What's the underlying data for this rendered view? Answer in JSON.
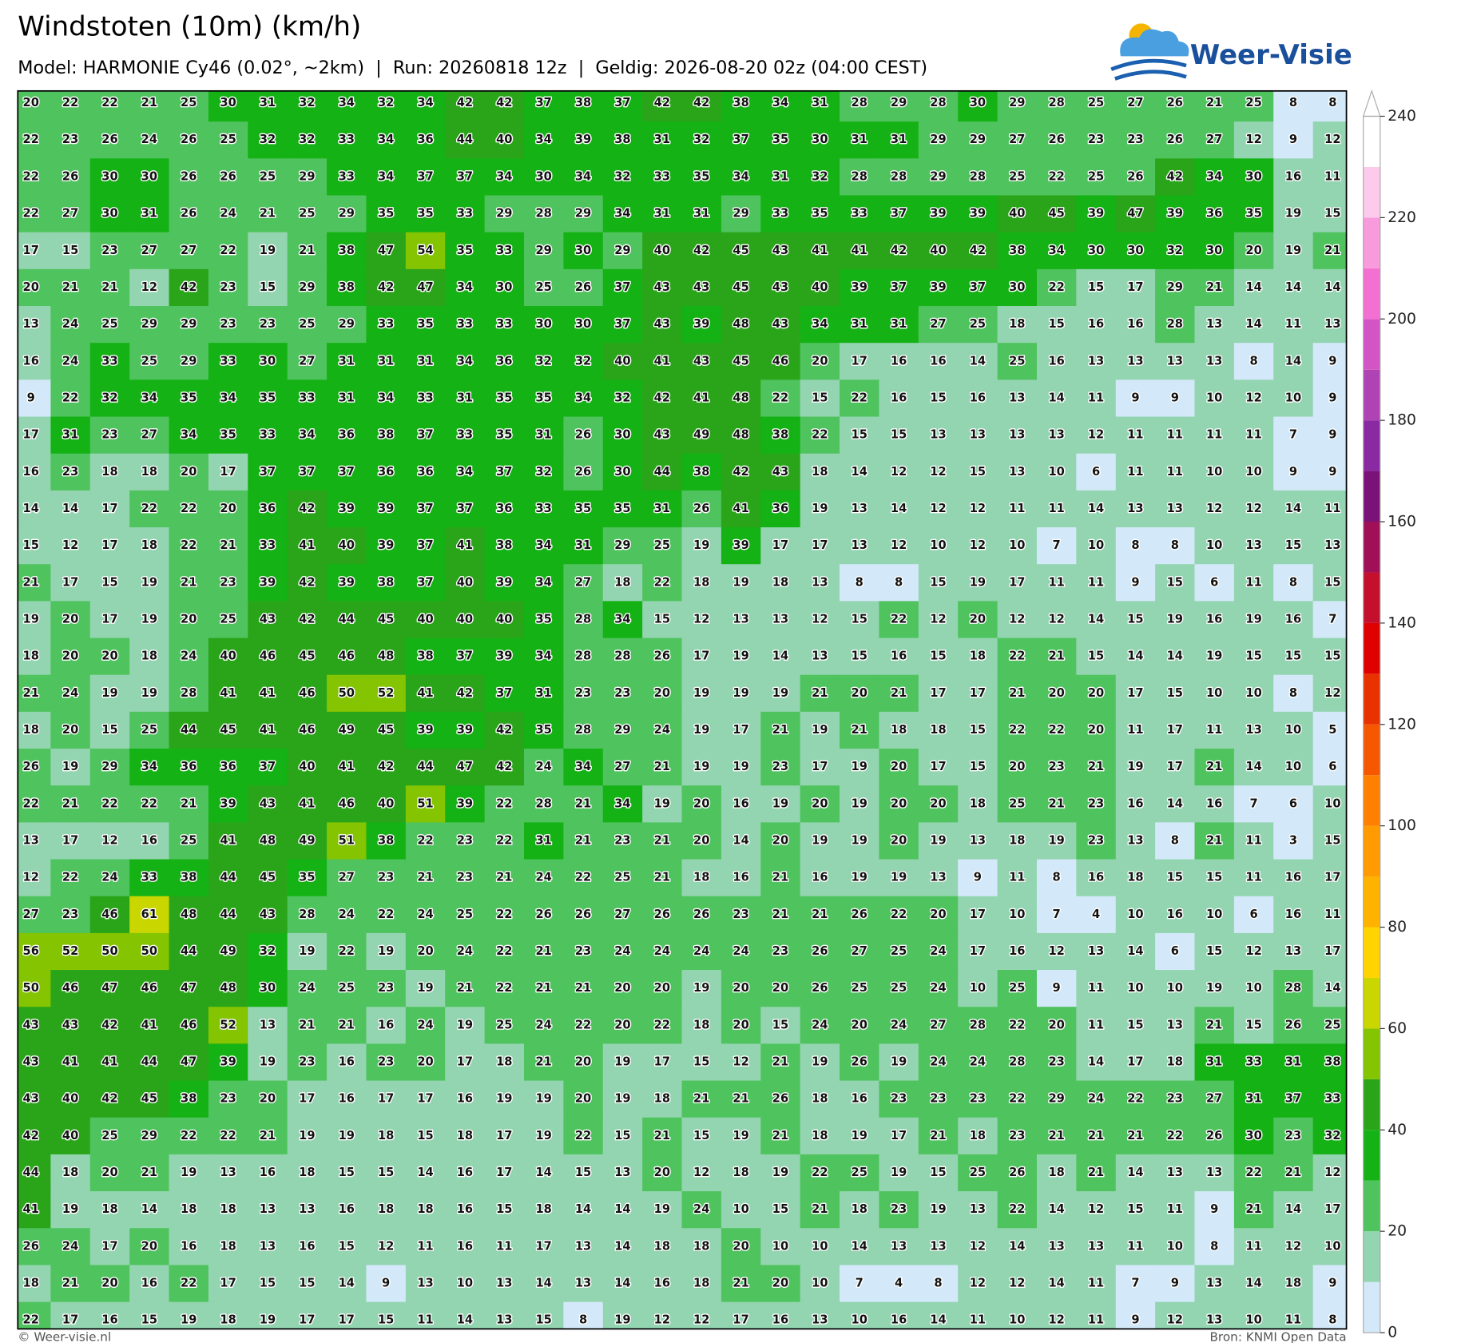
{
  "header": {
    "title": "Windstoten (10m) (km/h)",
    "subtitle": "Model: HARMONIE Cy46 (0.02°, ~2km)  |  Run: 20260818 12z  |  Geldig: 2026-08-20 02z (04:00 CEST)",
    "logo": "Weer-Visie"
  },
  "map": {
    "type": "grid",
    "values": [
      [
        20,
        22,
        22,
        21,
        25,
        30,
        31,
        32,
        34,
        32,
        34,
        42,
        42,
        37,
        38,
        37,
        42,
        42,
        38,
        34,
        31,
        28,
        29,
        28,
        30,
        29,
        28,
        25,
        27,
        26,
        21,
        25,
        8,
        8
      ],
      [
        22,
        23,
        26,
        24,
        26,
        25,
        32,
        32,
        33,
        34,
        36,
        44,
        40,
        34,
        39,
        38,
        31,
        32,
        37,
        35,
        30,
        31,
        31,
        29,
        29,
        27,
        26,
        23,
        23,
        26,
        27,
        12,
        9,
        12
      ],
      [
        22,
        26,
        30,
        30,
        26,
        26,
        25,
        29,
        33,
        34,
        37,
        37,
        34,
        30,
        34,
        32,
        33,
        35,
        34,
        31,
        32,
        28,
        28,
        29,
        28,
        25,
        22,
        25,
        26,
        42,
        34,
        30,
        16,
        11
      ],
      [
        22,
        27,
        30,
        31,
        26,
        24,
        21,
        25,
        29,
        35,
        35,
        33,
        29,
        28,
        29,
        34,
        31,
        31,
        29,
        33,
        35,
        33,
        37,
        39,
        39,
        40,
        45,
        39,
        47,
        39,
        36,
        35,
        19,
        15
      ],
      [
        17,
        15,
        23,
        27,
        27,
        22,
        19,
        21,
        38,
        47,
        54,
        35,
        33,
        29,
        30,
        29,
        40,
        42,
        45,
        43,
        41,
        41,
        42,
        40,
        42,
        38,
        34,
        30,
        30,
        32,
        30,
        20,
        19,
        21
      ],
      [
        20,
        21,
        21,
        12,
        42,
        23,
        15,
        29,
        38,
        42,
        47,
        34,
        30,
        25,
        26,
        37,
        43,
        43,
        45,
        43,
        40,
        39,
        37,
        39,
        37,
        30,
        22,
        15,
        17,
        29,
        21,
        14,
        14,
        14
      ],
      [
        13,
        24,
        25,
        29,
        29,
        23,
        23,
        25,
        29,
        33,
        35,
        33,
        33,
        30,
        30,
        37,
        43,
        39,
        48,
        43,
        34,
        31,
        31,
        27,
        25,
        18,
        15,
        16,
        16,
        28,
        13,
        14,
        11,
        13
      ],
      [
        16,
        24,
        33,
        25,
        29,
        33,
        30,
        27,
        31,
        31,
        31,
        34,
        36,
        32,
        32,
        40,
        41,
        43,
        45,
        46,
        20,
        17,
        16,
        16,
        14,
        25,
        16,
        13,
        13,
        13,
        13,
        8,
        14,
        9
      ],
      [
        9,
        22,
        32,
        34,
        35,
        34,
        35,
        33,
        31,
        34,
        33,
        31,
        35,
        35,
        34,
        32,
        42,
        41,
        48,
        22,
        15,
        22,
        16,
        15,
        16,
        13,
        14,
        11,
        9,
        9,
        10,
        12,
        10,
        9
      ],
      [
        17,
        31,
        23,
        27,
        34,
        35,
        33,
        34,
        36,
        38,
        37,
        33,
        35,
        31,
        26,
        30,
        43,
        49,
        48,
        38,
        22,
        15,
        15,
        13,
        13,
        13,
        13,
        12,
        11,
        11,
        11,
        11,
        7,
        9
      ],
      [
        16,
        23,
        18,
        18,
        20,
        17,
        37,
        37,
        37,
        36,
        36,
        34,
        37,
        32,
        26,
        30,
        44,
        38,
        42,
        43,
        18,
        14,
        12,
        12,
        15,
        13,
        10,
        6,
        11,
        11,
        10,
        10,
        9,
        9
      ],
      [
        14,
        14,
        17,
        22,
        22,
        20,
        36,
        42,
        39,
        39,
        37,
        37,
        36,
        33,
        35,
        35,
        31,
        26,
        41,
        36,
        19,
        13,
        14,
        12,
        12,
        11,
        11,
        14,
        13,
        13,
        12,
        12,
        14,
        11
      ],
      [
        15,
        12,
        17,
        18,
        22,
        21,
        33,
        41,
        40,
        39,
        37,
        41,
        38,
        34,
        31,
        29,
        25,
        19,
        39,
        17,
        17,
        13,
        12,
        10,
        12,
        10,
        7,
        10,
        8,
        8,
        10,
        13,
        15,
        13
      ],
      [
        21,
        17,
        15,
        19,
        21,
        23,
        39,
        42,
        39,
        38,
        37,
        40,
        39,
        34,
        27,
        18,
        22,
        18,
        19,
        18,
        13,
        8,
        8,
        15,
        19,
        17,
        11,
        11,
        9,
        15,
        6,
        11,
        8,
        15
      ],
      [
        19,
        20,
        17,
        19,
        20,
        25,
        43,
        42,
        44,
        45,
        40,
        40,
        40,
        35,
        28,
        34,
        15,
        12,
        13,
        13,
        12,
        15,
        22,
        12,
        20,
        12,
        12,
        14,
        15,
        19,
        16,
        19,
        16,
        7
      ],
      [
        18,
        20,
        20,
        18,
        24,
        40,
        46,
        45,
        46,
        48,
        38,
        37,
        39,
        34,
        28,
        28,
        26,
        17,
        19,
        14,
        13,
        15,
        16,
        15,
        18,
        22,
        21,
        15,
        14,
        14,
        19,
        15,
        15,
        15
      ],
      [
        21,
        24,
        19,
        19,
        28,
        41,
        41,
        46,
        50,
        52,
        41,
        42,
        37,
        31,
        23,
        23,
        20,
        19,
        19,
        19,
        21,
        20,
        21,
        17,
        17,
        21,
        20,
        20,
        17,
        15,
        10,
        10,
        8,
        12
      ],
      [
        18,
        20,
        15,
        25,
        44,
        45,
        41,
        46,
        49,
        45,
        39,
        39,
        42,
        35,
        28,
        29,
        24,
        19,
        17,
        21,
        19,
        21,
        18,
        18,
        15,
        22,
        22,
        20,
        11,
        17,
        11,
        13,
        10,
        5
      ],
      [
        26,
        19,
        29,
        34,
        36,
        36,
        37,
        40,
        41,
        42,
        44,
        47,
        42,
        24,
        34,
        27,
        21,
        19,
        19,
        23,
        17,
        19,
        20,
        17,
        15,
        20,
        23,
        21,
        19,
        17,
        21,
        14,
        10,
        6
      ],
      [
        22,
        21,
        22,
        22,
        21,
        39,
        43,
        41,
        46,
        40,
        51,
        39,
        22,
        28,
        21,
        34,
        19,
        20,
        16,
        19,
        20,
        19,
        20,
        20,
        18,
        25,
        21,
        23,
        16,
        14,
        16,
        7,
        6,
        10
      ],
      [
        13,
        17,
        12,
        16,
        25,
        41,
        48,
        49,
        51,
        38,
        22,
        23,
        22,
        31,
        21,
        23,
        21,
        20,
        14,
        20,
        19,
        19,
        20,
        19,
        13,
        18,
        19,
        23,
        13,
        8,
        21,
        11,
        3,
        15
      ],
      [
        12,
        22,
        24,
        33,
        38,
        44,
        45,
        35,
        27,
        23,
        21,
        23,
        21,
        24,
        22,
        25,
        21,
        18,
        16,
        21,
        16,
        19,
        19,
        13,
        9,
        11,
        8,
        16,
        18,
        15,
        15,
        11,
        16,
        17
      ],
      [
        27,
        23,
        46,
        61,
        48,
        44,
        43,
        28,
        24,
        22,
        24,
        25,
        22,
        26,
        26,
        27,
        26,
        26,
        23,
        21,
        21,
        26,
        22,
        20,
        17,
        10,
        7,
        4,
        10,
        16,
        10,
        6,
        16,
        11
      ],
      [
        56,
        52,
        50,
        50,
        44,
        49,
        32,
        19,
        22,
        19,
        20,
        24,
        22,
        21,
        23,
        24,
        24,
        24,
        24,
        23,
        26,
        27,
        25,
        24,
        17,
        16,
        12,
        13,
        14,
        6,
        15,
        12,
        13,
        17
      ],
      [
        50,
        46,
        47,
        46,
        47,
        48,
        30,
        24,
        25,
        23,
        19,
        21,
        22,
        21,
        21,
        20,
        20,
        19,
        20,
        20,
        26,
        25,
        25,
        24,
        10,
        25,
        9,
        11,
        10,
        10,
        19,
        10,
        28,
        14
      ],
      [
        43,
        43,
        42,
        41,
        46,
        52,
        13,
        21,
        21,
        16,
        24,
        19,
        25,
        24,
        22,
        20,
        22,
        18,
        20,
        15,
        24,
        20,
        24,
        27,
        28,
        22,
        20,
        11,
        15,
        13,
        21,
        15,
        26,
        25
      ],
      [
        43,
        41,
        41,
        44,
        47,
        39,
        19,
        23,
        16,
        23,
        20,
        17,
        18,
        21,
        20,
        19,
        17,
        15,
        12,
        21,
        19,
        26,
        19,
        24,
        24,
        28,
        23,
        14,
        17,
        18,
        31,
        33,
        31,
        38
      ],
      [
        43,
        40,
        42,
        45,
        38,
        23,
        20,
        17,
        16,
        17,
        17,
        16,
        19,
        19,
        20,
        19,
        18,
        21,
        21,
        26,
        18,
        16,
        23,
        23,
        23,
        22,
        29,
        24,
        22,
        23,
        27,
        31,
        37,
        33
      ],
      [
        42,
        40,
        25,
        29,
        22,
        22,
        21,
        19,
        19,
        18,
        15,
        18,
        17,
        19,
        22,
        15,
        21,
        15,
        19,
        21,
        18,
        19,
        17,
        21,
        18,
        23,
        21,
        21,
        21,
        22,
        26,
        30,
        23,
        32
      ],
      [
        44,
        18,
        20,
        21,
        19,
        13,
        16,
        18,
        15,
        15,
        14,
        16,
        17,
        14,
        15,
        13,
        20,
        12,
        18,
        19,
        22,
        25,
        19,
        15,
        25,
        26,
        18,
        21,
        14,
        13,
        13,
        22,
        21,
        12
      ],
      [
        41,
        19,
        18,
        14,
        18,
        18,
        13,
        13,
        16,
        18,
        18,
        16,
        15,
        18,
        14,
        14,
        19,
        24,
        10,
        15,
        21,
        18,
        23,
        19,
        13,
        22,
        14,
        12,
        15,
        11,
        9,
        21,
        14,
        17
      ],
      [
        26,
        24,
        17,
        20,
        16,
        18,
        13,
        16,
        15,
        12,
        11,
        16,
        11,
        17,
        13,
        14,
        18,
        18,
        20,
        10,
        10,
        14,
        13,
        13,
        12,
        14,
        13,
        13,
        11,
        10,
        8,
        11,
        12,
        10
      ],
      [
        18,
        21,
        20,
        16,
        22,
        17,
        15,
        15,
        14,
        9,
        13,
        10,
        13,
        14,
        13,
        14,
        16,
        18,
        21,
        20,
        10,
        7,
        4,
        8,
        12,
        12,
        14,
        11,
        7,
        9,
        13,
        14,
        18,
        9
      ],
      [
        22,
        17,
        16,
        15,
        19,
        18,
        19,
        17,
        17,
        15,
        11,
        14,
        13,
        15,
        8,
        19,
        12,
        12,
        17,
        16,
        13,
        10,
        16,
        14,
        11,
        10,
        12,
        11,
        9,
        12,
        13,
        10,
        11,
        8
      ]
    ]
  },
  "colorbar": {
    "levels": [
      0,
      10,
      20,
      30,
      40,
      50,
      60,
      70,
      80,
      90,
      100,
      110,
      120,
      130,
      140,
      150,
      160,
      170,
      180,
      190,
      200,
      210,
      220,
      230,
      240
    ],
    "colors": [
      "#d3e9f9",
      "#93d5b0",
      "#4fc35e",
      "#14b214",
      "#2aa51a",
      "#84c400",
      "#c9d600",
      "#ffd400",
      "#ffb200",
      "#ff9a00",
      "#ff7f00",
      "#f55800",
      "#e83200",
      "#df0000",
      "#c4102c",
      "#a10f56",
      "#7b1278",
      "#8a2aa2",
      "#b043b4",
      "#d354c4",
      "#f46fd2",
      "#f89bdd",
      "#fccaea",
      "#ffffff"
    ],
    "ticks": [
      0,
      20,
      40,
      60,
      80,
      100,
      120,
      140,
      160,
      180,
      200,
      220,
      240
    ]
  },
  "footer": {
    "left": "© Weer-visie.nl",
    "right": "Bron: KNMI Open Data"
  }
}
